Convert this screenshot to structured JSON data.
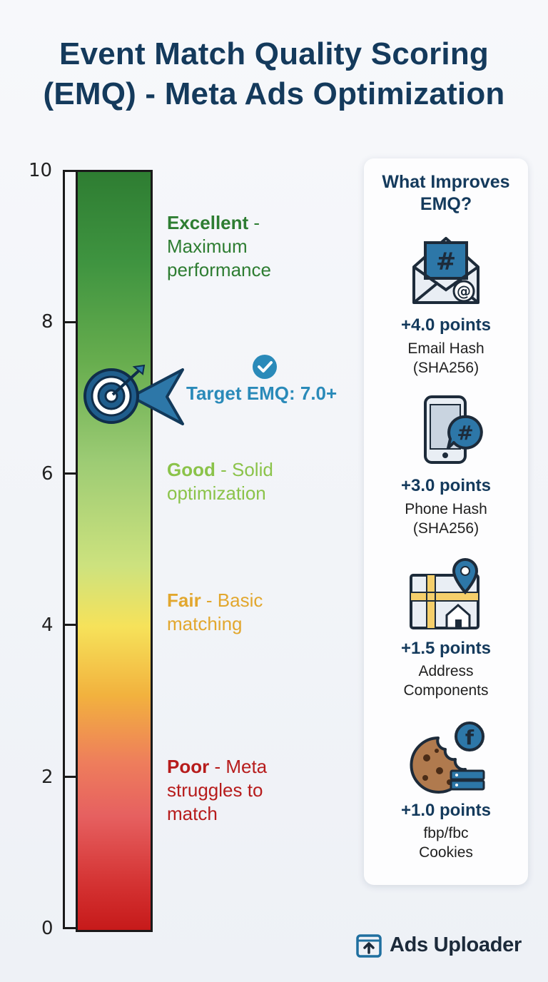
{
  "title": {
    "line1": "Event Match Quality Scoring",
    "line2": "(EMQ) - Meta Ads Optimization"
  },
  "scale": {
    "ticks": [
      "10",
      "8",
      "6",
      "4",
      "2",
      "0"
    ],
    "bands": [
      {
        "name": "Excellent",
        "desc": "Maximum performance",
        "color": "#2e7d32"
      },
      {
        "name": "Good",
        "desc": "Solid optimization",
        "color": "#8bc34a"
      },
      {
        "name": "Fair",
        "desc": "Basic matching",
        "color": "#e2a72e"
      },
      {
        "name": "Poor",
        "desc": "Meta struggles to match",
        "color": "#b71c1c"
      }
    ],
    "target": {
      "text": "Target EMQ: 7.0+",
      "value": 7.0,
      "color": "#2a8ab9"
    }
  },
  "panel": {
    "title": "What Improves EMQ?",
    "items": [
      {
        "points": "+4.0 points",
        "label_line1": "Email Hash",
        "label_line2": "(SHA256)",
        "icon": "email-hash-icon"
      },
      {
        "points": "+3.0 points",
        "label_line1": "Phone Hash",
        "label_line2": "(SHA256)",
        "icon": "phone-hash-icon"
      },
      {
        "points": "+1.5 points",
        "label_line1": "Address",
        "label_line2": "Components",
        "icon": "address-map-icon"
      },
      {
        "points": "+1.0 points",
        "label_line1": "fbp/fbc",
        "label_line2": "Cookies",
        "icon": "cookie-icon"
      }
    ]
  },
  "brand": {
    "name": "Ads Uploader"
  }
}
